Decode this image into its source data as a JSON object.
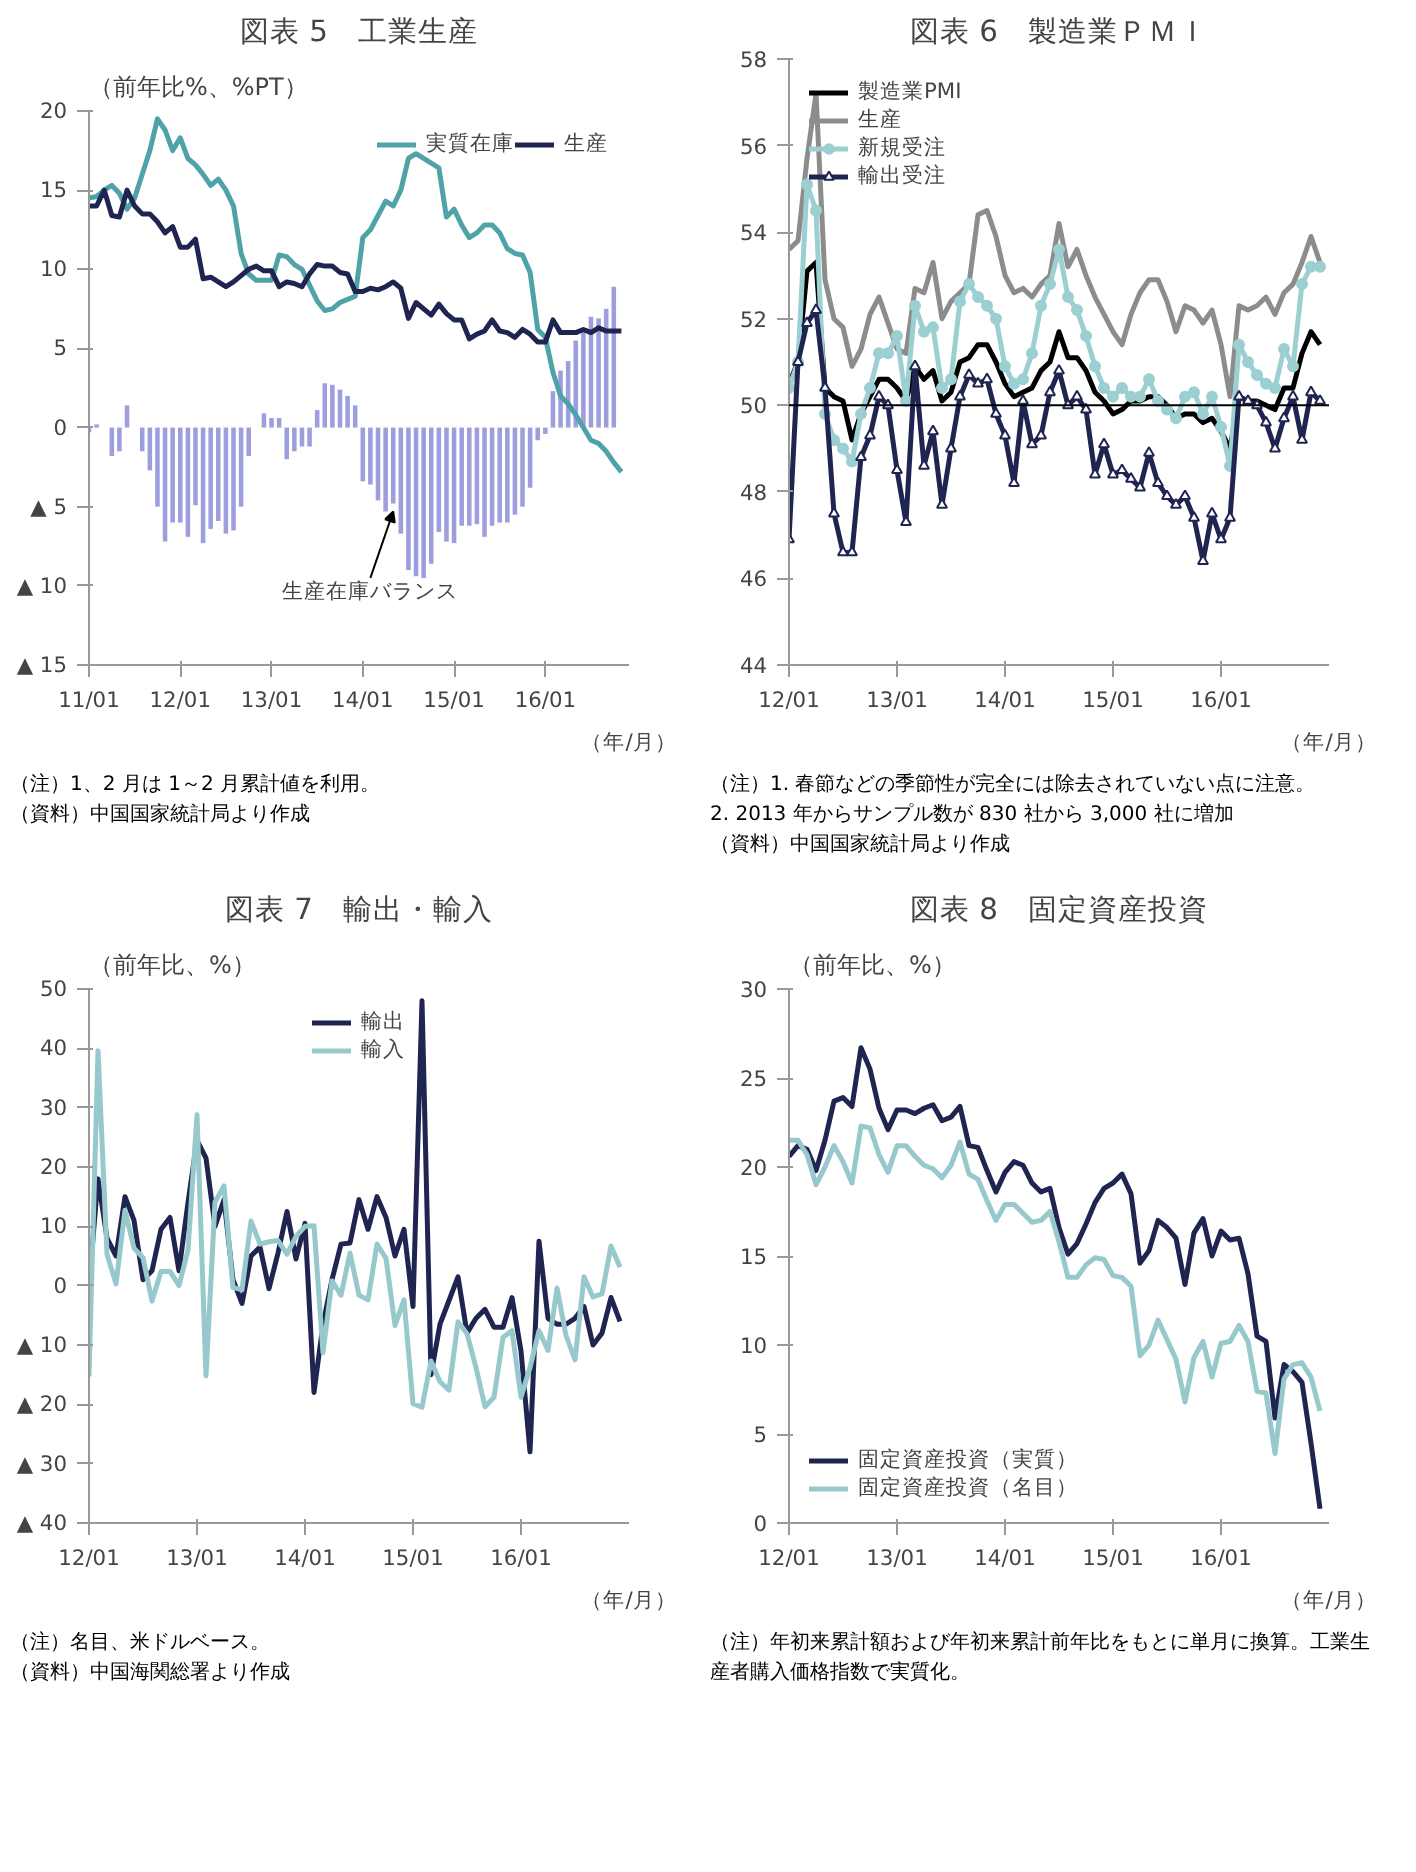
{
  "chart_data": [
    {
      "type": "line",
      "title": "図表 5　工業生産",
      "ylabel": "（前年比%、%PT）",
      "xlabel": "（年/月）",
      "x": [
        "2011-01",
        "2011-02",
        "2011-03",
        "2011-04",
        "2011-05",
        "2011-06",
        "2011-07",
        "2011-08",
        "2011-09",
        "2011-10",
        "2011-11",
        "2011-12",
        "2012-01",
        "2012-02",
        "2012-03",
        "2012-04",
        "2012-05",
        "2012-06",
        "2012-07",
        "2012-08",
        "2012-09",
        "2012-10",
        "2012-11",
        "2012-12",
        "2013-01",
        "2013-02",
        "2013-03",
        "2013-04",
        "2013-05",
        "2013-06",
        "2013-07",
        "2013-08",
        "2013-09",
        "2013-10",
        "2013-11",
        "2013-12",
        "2014-01",
        "2014-02",
        "2014-03",
        "2014-04",
        "2014-05",
        "2014-06",
        "2014-07",
        "2014-08",
        "2014-09",
        "2014-10",
        "2014-11",
        "2014-12",
        "2015-01",
        "2015-02",
        "2015-03",
        "2015-04",
        "2015-05",
        "2015-06",
        "2015-07",
        "2015-08",
        "2015-09",
        "2015-10",
        "2015-11",
        "2015-12",
        "2016-01",
        "2016-02",
        "2016-03",
        "2016-04",
        "2016-05",
        "2016-06",
        "2016-07",
        "2016-08",
        "2016-09",
        "2016-10",
        "2016-11"
      ],
      "series": [
        {
          "type": "bar",
          "color": "#9c9ede",
          "values": [
            -0.3,
            0.2,
            0,
            -1.8,
            -1.5,
            1.4,
            0,
            -1.5,
            -2.7,
            -5.0,
            -7.2,
            -6.0,
            -6.0,
            -6.9,
            -4.9,
            -7.3,
            -6.4,
            -5.9,
            -6.7,
            -6.5,
            -5.0,
            -1.8,
            0,
            0.9,
            0.6,
            0.6,
            -2.0,
            -1.5,
            -1.2,
            -1.2,
            1.1,
            2.8,
            2.7,
            2.4,
            2.0,
            1.4,
            -3.4,
            -3.6,
            -4.6,
            -5.3,
            -4.8,
            -6.7,
            -9.0,
            -9.4,
            -9.5,
            -8.6,
            -6.6,
            -7.2,
            -7.3,
            -6.2,
            -6.2,
            -6.1,
            -6.9,
            -6.2,
            -6.0,
            -6.0,
            -5.5,
            -5.0,
            -3.8,
            -0.8,
            -0.4,
            2.3,
            3.6,
            4.2,
            5.5,
            6.1,
            7.0,
            6.9,
            7.5,
            8.9,
            null
          ]
        },
        {
          "name": "実質在庫",
          "color": "#4fa3a8",
          "values": [
            14.5,
            14.6,
            15.0,
            15.3,
            14.8,
            13.8,
            14.5,
            16.0,
            17.5,
            19.5,
            18.8,
            17.5,
            18.3,
            17.0,
            16.6,
            16.0,
            15.3,
            15.7,
            15.0,
            14.0,
            11.0,
            9.7,
            9.3,
            9.3,
            9.3,
            10.9,
            10.8,
            10.3,
            10.0,
            9.0,
            8.0,
            7.4,
            7.5,
            7.9,
            8.1,
            8.3,
            12.0,
            12.5,
            13.4,
            14.3,
            14.0,
            15.0,
            17.0,
            17.3,
            17.0,
            16.7,
            16.4,
            13.3,
            13.8,
            12.8,
            12.0,
            12.3,
            12.8,
            12.8,
            12.3,
            11.3,
            11.0,
            10.9,
            9.8,
            6.2,
            5.7,
            3.5,
            2.0,
            1.5,
            0.8,
            0,
            -0.8,
            -1.0,
            -1.5,
            -2.2,
            -2.8
          ]
        },
        {
          "name": "生産",
          "color": "#1f2451",
          "values": [
            14,
            14,
            15,
            13.4,
            13.3,
            15,
            14,
            13.5,
            13.5,
            13,
            12.3,
            12.7,
            11.4,
            11.4,
            11.9,
            9.4,
            9.5,
            9.2,
            8.9,
            9.2,
            9.6,
            10.0,
            10.2,
            9.9,
            9.9,
            8.9,
            9.2,
            9.1,
            8.9,
            9.7,
            10.3,
            10.2,
            10.2,
            9.8,
            9.7,
            8.6,
            8.6,
            8.8,
            8.7,
            8.9,
            9.2,
            8.8,
            6.9,
            7.9,
            7.5,
            7.1,
            7.8,
            7.2,
            6.8,
            6.8,
            5.6,
            5.9,
            6.1,
            6.8,
            6.1,
            6.0,
            5.7,
            6.2,
            5.9,
            5.4,
            5.4,
            6.8,
            6.0,
            6.0,
            6.0,
            6.2,
            6.0,
            6.3,
            6.1,
            6.1,
            6.1
          ]
        }
      ],
      "xlim": [
        "2011-01",
        "2016-12"
      ],
      "xticks": [
        {
          "value": "2011-01",
          "label": "11/01"
        },
        {
          "value": "2012-01",
          "label": "12/01"
        },
        {
          "value": "2013-01",
          "label": "13/01"
        },
        {
          "value": "2014-01",
          "label": "14/01"
        },
        {
          "value": "2015-01",
          "label": "15/01"
        },
        {
          "value": "2016-01",
          "label": "16/01"
        }
      ],
      "ylim": [
        -15,
        20
      ],
      "yticks": [
        {
          "value": -15,
          "label": "▲ 15"
        },
        {
          "value": -10,
          "label": "▲ 10"
        },
        {
          "value": -5,
          "label": "▲ 5"
        },
        0,
        5,
        10,
        15,
        20
      ],
      "legend": "top right",
      "annotations": [
        {
          "text": "生産在庫バランス",
          "x": "2014-05",
          "y": -5.3
        },
        "（注）1、2 月は 1～2 月累計値を利用。",
        "（資料）中国国家統計局より作成"
      ]
    },
    {
      "type": "line",
      "title": "図表 6　製造業ＰＭＩ",
      "xlabel": "（年/月）",
      "x": [
        "2012-01",
        "2012-02",
        "2012-03",
        "2012-04",
        "2012-05",
        "2012-06",
        "2012-07",
        "2012-08",
        "2012-09",
        "2012-10",
        "2012-11",
        "2012-12",
        "2013-01",
        "2013-02",
        "2013-03",
        "2013-04",
        "2013-05",
        "2013-06",
        "2013-07",
        "2013-08",
        "2013-09",
        "2013-10",
        "2013-11",
        "2013-12",
        "2014-01",
        "2014-02",
        "2014-03",
        "2014-04",
        "2014-05",
        "2014-06",
        "2014-07",
        "2014-08",
        "2014-09",
        "2014-10",
        "2014-11",
        "2014-12",
        "2015-01",
        "2015-02",
        "2015-03",
        "2015-04",
        "2015-05",
        "2015-06",
        "2015-07",
        "2015-08",
        "2015-09",
        "2015-10",
        "2015-11",
        "2015-12",
        "2016-01",
        "2016-02",
        "2016-03",
        "2016-04",
        "2016-05",
        "2016-06",
        "2016-07",
        "2016-08",
        "2016-09",
        "2016-10",
        "2016-11",
        "2016-12"
      ],
      "series": [
        {
          "name": "製造業PMI",
          "color": "#000000",
          "values": [
            50.5,
            51.0,
            53.1,
            53.3,
            50.4,
            50.2,
            50.1,
            49.2,
            49.8,
            50.2,
            50.6,
            50.6,
            50.4,
            50.1,
            50.9,
            50.6,
            50.8,
            50.1,
            50.3,
            51.0,
            51.1,
            51.4,
            51.4,
            51.0,
            50.5,
            50.2,
            50.3,
            50.4,
            50.8,
            51.0,
            51.7,
            51.1,
            51.1,
            50.8,
            50.3,
            50.1,
            49.8,
            49.9,
            50.1,
            50.1,
            50.2,
            50.2,
            50.0,
            49.7,
            49.8,
            49.8,
            49.6,
            49.7,
            49.4,
            49.0,
            50.2,
            50.1,
            50.1,
            50.0,
            49.9,
            50.4,
            50.4,
            51.2,
            51.7,
            51.4
          ]
        },
        {
          "name": "生産",
          "color": "#8c8c8c",
          "values": [
            53.6,
            53.8,
            55.7,
            57.2,
            52.9,
            52.0,
            51.8,
            50.9,
            51.3,
            52.1,
            52.5,
            51.9,
            51.3,
            51.2,
            52.7,
            52.6,
            53.3,
            52.0,
            52.4,
            52.6,
            52.8,
            54.4,
            54.5,
            53.9,
            53.0,
            52.6,
            52.7,
            52.5,
            52.8,
            53.0,
            54.2,
            53.2,
            53.6,
            53.0,
            52.5,
            52.1,
            51.7,
            51.4,
            52.1,
            52.6,
            52.9,
            52.9,
            52.4,
            51.7,
            52.3,
            52.2,
            51.9,
            52.2,
            51.4,
            50.2,
            52.3,
            52.2,
            52.3,
            52.5,
            52.1,
            52.6,
            52.8,
            53.3,
            53.9,
            53.3
          ]
        },
        {
          "name": "新規受注",
          "color": "#9bcfd2",
          "marker": "circle",
          "values": [
            50.4,
            51.0,
            55.1,
            54.5,
            49.8,
            49.2,
            49.0,
            48.7,
            49.8,
            50.4,
            51.2,
            51.2,
            51.6,
            50.1,
            52.3,
            51.7,
            51.8,
            50.4,
            50.6,
            52.4,
            52.8,
            52.5,
            52.3,
            52.0,
            50.9,
            50.5,
            50.6,
            51.2,
            52.3,
            52.8,
            53.6,
            52.5,
            52.2,
            51.6,
            50.9,
            50.4,
            50.2,
            50.4,
            50.2,
            50.2,
            50.6,
            50.1,
            49.9,
            49.7,
            50.2,
            50.3,
            49.8,
            50.2,
            49.5,
            48.6,
            51.4,
            51.0,
            50.7,
            50.5,
            50.4,
            51.3,
            50.9,
            52.8,
            53.2,
            53.2
          ]
        },
        {
          "name": "輸出受注",
          "color": "#1f2451",
          "marker": "triangle",
          "values": [
            46.9,
            51.0,
            51.9,
            52.2,
            50.4,
            47.5,
            46.6,
            46.6,
            48.8,
            49.3,
            50.2,
            50.0,
            48.5,
            47.3,
            50.9,
            48.6,
            49.4,
            47.7,
            49.0,
            50.2,
            50.7,
            50.5,
            50.6,
            49.8,
            49.3,
            48.2,
            50.1,
            49.1,
            49.3,
            50.3,
            50.8,
            50.0,
            50.2,
            49.9,
            48.4,
            49.1,
            48.4,
            48.5,
            48.3,
            48.1,
            48.9,
            48.2,
            47.9,
            47.7,
            47.9,
            47.4,
            46.4,
            47.5,
            46.9,
            47.4,
            50.2,
            50.1,
            50.0,
            49.6,
            49.0,
            49.7,
            50.2,
            49.2,
            50.3,
            50.1
          ]
        }
      ],
      "xlim": [
        "2012-01",
        "2017-01"
      ],
      "xticks": [
        {
          "value": "2012-01",
          "label": "12/01"
        },
        {
          "value": "2013-01",
          "label": "13/01"
        },
        {
          "value": "2014-01",
          "label": "14/01"
        },
        {
          "value": "2015-01",
          "label": "15/01"
        },
        {
          "value": "2016-01",
          "label": "16/01"
        }
      ],
      "ylim": [
        44,
        58
      ],
      "yticks": [
        44,
        46,
        48,
        50,
        52,
        54,
        56,
        58
      ],
      "ref_lines": [
        {
          "axis": "y",
          "value": 50,
          "color": "#000000"
        }
      ],
      "legend": "top left",
      "annotations": [
        "（注）1. 春節などの季節性が完全には除去されていない点に注意。",
        "2. 2013 年からサンプル数が 830 社から 3,000 社に増加",
        "（資料）中国国家統計局より作成"
      ]
    },
    {
      "type": "line",
      "title": "図表 7　輸出・輸入",
      "ylabel": "（前年比、%）",
      "xlabel": "（年/月）",
      "x": [
        "2012-01",
        "2012-02",
        "2012-03",
        "2012-04",
        "2012-05",
        "2012-06",
        "2012-07",
        "2012-08",
        "2012-09",
        "2012-10",
        "2012-11",
        "2012-12",
        "2013-01",
        "2013-02",
        "2013-03",
        "2013-04",
        "2013-05",
        "2013-06",
        "2013-07",
        "2013-08",
        "2013-09",
        "2013-10",
        "2013-11",
        "2013-12",
        "2014-01",
        "2014-02",
        "2014-03",
        "2014-04",
        "2014-05",
        "2014-06",
        "2014-07",
        "2014-08",
        "2014-09",
        "2014-10",
        "2014-11",
        "2014-12",
        "2015-01",
        "2015-02",
        "2015-03",
        "2015-04",
        "2015-05",
        "2015-06",
        "2015-07",
        "2015-08",
        "2015-09",
        "2015-10",
        "2015-11",
        "2015-12",
        "2016-01",
        "2016-02",
        "2016-03",
        "2016-04",
        "2016-05",
        "2016-06",
        "2016-07",
        "2016-08",
        "2016-09",
        "2016-10",
        "2016-11",
        "2016-12"
      ],
      "series": [
        {
          "name": "輸出",
          "color": "#1f2451",
          "values": [
            0,
            18,
            8,
            5,
            15,
            11,
            1,
            2.5,
            9.5,
            11.5,
            2.5,
            14,
            24.5,
            21.5,
            10,
            14.5,
            1,
            -3,
            5,
            6.5,
            -0.5,
            5.5,
            12.5,
            4.5,
            10.5,
            -18,
            -6.5,
            1,
            7,
            7.2,
            14.5,
            9.5,
            15,
            11.5,
            5,
            9.5,
            -3.5,
            48,
            -15,
            -6.5,
            -2.5,
            1.5,
            -8,
            -5.5,
            -4,
            -7,
            -7,
            -2,
            -11,
            -28,
            7.5,
            -5.5,
            -6.5,
            -6.5,
            -5.5,
            -3.5,
            -10,
            -8,
            -2,
            -6
          ]
        },
        {
          "name": "輸入",
          "color": "#97c9cc",
          "values": [
            -15.3,
            39.6,
            5.3,
            0.3,
            12.7,
            6.3,
            4.7,
            -2.6,
            2.4,
            2.4,
            0,
            6.0,
            28.8,
            -15.2,
            14.1,
            16.8,
            -0.3,
            -0.7,
            10.9,
            7.0,
            7.4,
            7.6,
            5.3,
            8.3,
            10.0,
            10.1,
            -11.3,
            0.8,
            -1.6,
            5.5,
            -1.6,
            -2.4,
            7.0,
            4.6,
            -6.7,
            -2.4,
            -19.9,
            -20.5,
            -12.7,
            -16.2,
            -17.6,
            -6.1,
            -8.1,
            -13.8,
            -20.4,
            -18.8,
            -8.7,
            -7.6,
            -18.8,
            -13.8,
            -7.6,
            -10.9,
            -0.4,
            -8.4,
            -12.5,
            1.5,
            -1.9,
            -1.4,
            6.7,
            3.1
          ]
        }
      ],
      "xlim": [
        "2012-01",
        "2017-01"
      ],
      "xticks": [
        {
          "value": "2012-01",
          "label": "12/01"
        },
        {
          "value": "2013-01",
          "label": "13/01"
        },
        {
          "value": "2014-01",
          "label": "14/01"
        },
        {
          "value": "2015-01",
          "label": "15/01"
        },
        {
          "value": "2016-01",
          "label": "16/01"
        }
      ],
      "ylim": [
        -40,
        50
      ],
      "yticks": [
        {
          "value": -40,
          "label": "▲ 40"
        },
        {
          "value": -30,
          "label": "▲ 30"
        },
        {
          "value": -20,
          "label": "▲ 20"
        },
        {
          "value": -10,
          "label": "▲ 10"
        },
        0,
        10,
        20,
        30,
        40,
        50
      ],
      "legend": "top",
      "annotations": [
        "（注）名目、米ドルベース。",
        "（資料）中国海関総署より作成"
      ]
    },
    {
      "type": "line",
      "title": "図表 8　固定資産投資",
      "ylabel": "（前年比、%）",
      "xlabel": "（年/月）",
      "x": [
        "2012-01",
        "2012-02",
        "2012-03",
        "2012-04",
        "2012-05",
        "2012-06",
        "2012-07",
        "2012-08",
        "2012-09",
        "2012-10",
        "2012-11",
        "2012-12",
        "2013-01",
        "2013-02",
        "2013-03",
        "2013-04",
        "2013-05",
        "2013-06",
        "2013-07",
        "2013-08",
        "2013-09",
        "2013-10",
        "2013-11",
        "2013-12",
        "2014-01",
        "2014-02",
        "2014-03",
        "2014-04",
        "2014-05",
        "2014-06",
        "2014-07",
        "2014-08",
        "2014-09",
        "2014-10",
        "2014-11",
        "2014-12",
        "2015-01",
        "2015-02",
        "2015-03",
        "2015-04",
        "2015-05",
        "2015-06",
        "2015-07",
        "2015-08",
        "2015-09",
        "2015-10",
        "2015-11",
        "2015-12",
        "2016-01",
        "2016-02",
        "2016-03",
        "2016-04",
        "2016-05",
        "2016-06",
        "2016-07",
        "2016-08",
        "2016-09",
        "2016-10",
        "2016-11",
        "2016-12"
      ],
      "series": [
        {
          "name": "固定資産投資（実質）",
          "color": "#1f2451",
          "values": [
            20.6,
            21.2,
            21.0,
            19.8,
            21.5,
            23.7,
            23.9,
            23.4,
            26.7,
            25.5,
            23.3,
            22.1,
            23.2,
            23.2,
            23.0,
            23.3,
            23.5,
            22.6,
            22.8,
            23.4,
            21.2,
            21.1,
            19.8,
            18.6,
            19.7,
            20.3,
            20.1,
            19.1,
            18.6,
            18.8,
            16.6,
            15.1,
            15.7,
            16.8,
            18.0,
            18.8,
            19.1,
            19.6,
            18.5,
            14.6,
            15.3,
            17.0,
            16.6,
            16.0,
            13.4,
            16.3,
            17.1,
            15.0,
            16.4,
            15.9,
            16.0,
            14.0,
            10.5,
            10.2,
            5.9,
            8.9,
            8.5,
            7.9,
            4.5,
            0.8
          ]
        },
        {
          "name": "固定資産投資（名目）",
          "color": "#97c9cc",
          "values": [
            21.5,
            21.5,
            20.7,
            19.0,
            20.0,
            21.2,
            20.3,
            19.1,
            22.3,
            22.2,
            20.7,
            19.7,
            21.2,
            21.2,
            20.6,
            20.1,
            19.9,
            19.4,
            20.1,
            21.4,
            19.6,
            19.3,
            18.1,
            17.0,
            17.9,
            17.9,
            17.4,
            16.9,
            17.0,
            17.5,
            15.8,
            13.8,
            13.8,
            14.5,
            14.9,
            14.8,
            13.9,
            13.8,
            13.3,
            9.4,
            10.0,
            11.4,
            10.3,
            9.2,
            6.8,
            9.3,
            10.2,
            8.2,
            10.1,
            10.2,
            11.1,
            10.2,
            7.4,
            7.3,
            3.9,
            8.1,
            8.9,
            9.0,
            8.2,
            6.3
          ]
        }
      ],
      "xlim": [
        "2012-01",
        "2017-01"
      ],
      "xticks": [
        {
          "value": "2012-01",
          "label": "12/01"
        },
        {
          "value": "2013-01",
          "label": "13/01"
        },
        {
          "value": "2014-01",
          "label": "14/01"
        },
        {
          "value": "2015-01",
          "label": "15/01"
        },
        {
          "value": "2016-01",
          "label": "16/01"
        }
      ],
      "ylim": [
        0,
        30
      ],
      "yticks": [
        0,
        5,
        10,
        15,
        20,
        25,
        30
      ],
      "legend": "bottom left",
      "annotations": [
        "（注）年初来累計額および年初来累計前年比をもとに単月に換算。工業生産者購入価格指数で実質化。"
      ]
    }
  ]
}
